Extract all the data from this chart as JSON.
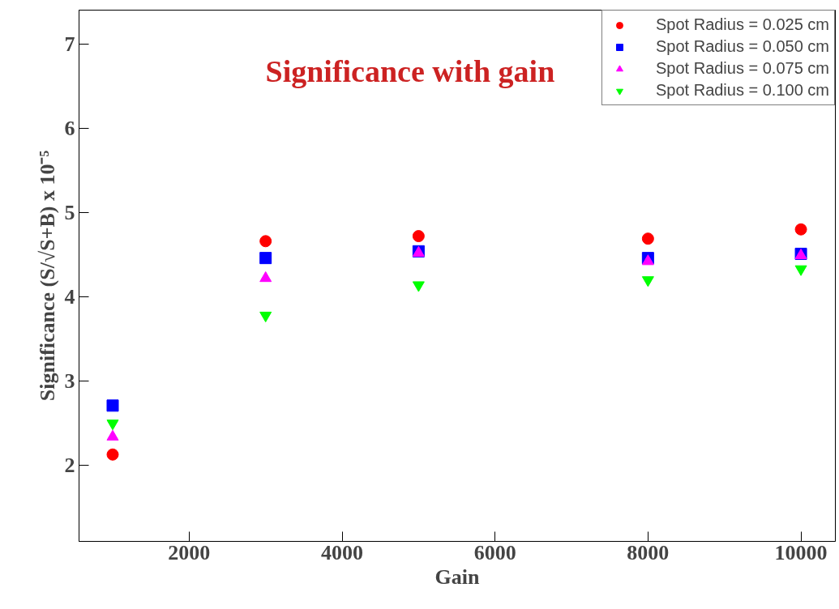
{
  "chart_data": {
    "type": "scatter",
    "title": "Significance with gain",
    "xlabel": "Gain",
    "ylabel": "Significance (S/√S+B) x 10⁻⁵",
    "x": [
      1000,
      3000,
      5000,
      8000,
      10000
    ],
    "series": [
      {
        "name": "Spot Radius = 0.025 cm",
        "color": "#ff0000",
        "marker": "circle",
        "values": [
          2.13,
          4.66,
          4.72,
          4.69,
          4.8
        ]
      },
      {
        "name": "Spot Radius = 0.050 cm",
        "color": "#0000ff",
        "marker": "square",
        "values": [
          2.71,
          4.46,
          4.54,
          4.46,
          4.51
        ]
      },
      {
        "name": "Spot Radius = 0.075 cm",
        "color": "#ff00ff",
        "marker": "triangle",
        "values": [
          2.34,
          4.22,
          4.52,
          4.42,
          4.49
        ]
      },
      {
        "name": "Spot Radius = 0.100 cm",
        "color": "#00ff00",
        "marker": "triangle",
        "values": [
          2.5,
          3.78,
          4.14,
          4.2,
          4.33
        ]
      }
    ],
    "xlim": [
      560,
      10450
    ],
    "ylim": [
      1.1,
      7.4
    ],
    "xticks": [
      2000,
      4000,
      6000,
      8000,
      10000
    ],
    "yticks": [
      2,
      3,
      4,
      5,
      6,
      7
    ],
    "grid": false,
    "legend": "top right"
  }
}
